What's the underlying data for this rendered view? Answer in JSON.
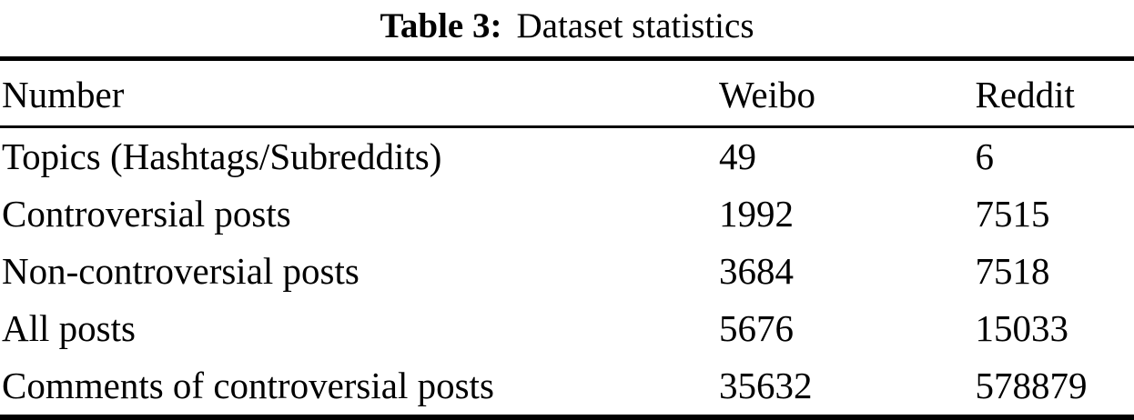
{
  "caption": {
    "label": "Table 3:",
    "text": "Dataset statistics"
  },
  "table": {
    "columns": [
      "Number",
      "Weibo",
      "Reddit"
    ],
    "rows": [
      {
        "cells": [
          "Topics (Hashtags/Subreddits)",
          "49",
          "6"
        ]
      },
      {
        "cells": [
          "Controversial posts",
          "1992",
          "7515"
        ]
      },
      {
        "cells": [
          "Non-controversial posts",
          "3684",
          "7518"
        ]
      },
      {
        "cells": [
          "All posts",
          "5676",
          "15033"
        ]
      },
      {
        "cells": [
          "Comments of controversial posts",
          "35632",
          "578879"
        ]
      }
    ]
  },
  "colors": {
    "background": "#ffffff",
    "text": "#000000",
    "rule": "#000000"
  }
}
